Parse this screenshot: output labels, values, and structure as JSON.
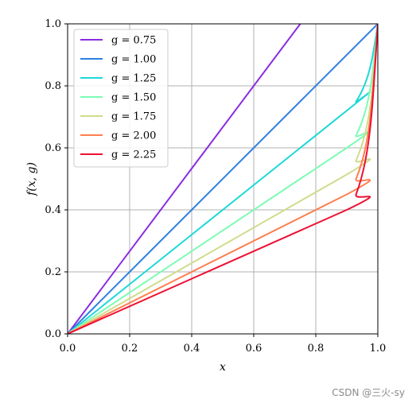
{
  "chart_data": {
    "type": "line",
    "title": "",
    "xlabel": "x",
    "ylabel": "f(x, g)",
    "xlim": [
      0.0,
      1.0
    ],
    "ylim": [
      0.0,
      1.0
    ],
    "xticks": [
      "0.0",
      "0.2",
      "0.4",
      "0.6",
      "0.8",
      "1.0"
    ],
    "yticks": [
      "0.0",
      "0.2",
      "0.4",
      "0.6",
      "0.8",
      "1.0"
    ],
    "grid": true,
    "legend_position": "top-left",
    "series": [
      {
        "name": "g = 0.75",
        "color": "#8b2be2",
        "points": [
          [
            0.0,
            0.0
          ],
          [
            0.75,
            1.0
          ]
        ]
      },
      {
        "name": "g = 1.00",
        "color": "#2c7fe0",
        "points": [
          [
            0.0,
            0.0
          ],
          [
            1.0,
            1.0
          ]
        ]
      },
      {
        "name": "g = 1.25",
        "color": "#1fd8d8",
        "points": [
          [
            0.0,
            0.0
          ],
          [
            0.9,
            0.72
          ],
          [
            0.93,
            0.75
          ],
          [
            0.96,
            0.81
          ],
          [
            0.98,
            0.88
          ],
          [
            1.0,
            1.0
          ]
        ]
      },
      {
        "name": "g = 1.50",
        "color": "#7dfcb4",
        "points": [
          [
            0.0,
            0.0
          ],
          [
            0.9,
            0.6
          ],
          [
            0.93,
            0.64
          ],
          [
            0.96,
            0.72
          ],
          [
            0.98,
            0.82
          ],
          [
            1.0,
            1.0
          ]
        ]
      },
      {
        "name": "g = 1.75",
        "color": "#cfdc8c",
        "points": [
          [
            0.0,
            0.0
          ],
          [
            0.9,
            0.514
          ],
          [
            0.93,
            0.56
          ],
          [
            0.96,
            0.65
          ],
          [
            0.98,
            0.77
          ],
          [
            1.0,
            1.0
          ]
        ]
      },
      {
        "name": "g = 2.00",
        "color": "#ff7f50",
        "points": [
          [
            0.0,
            0.0
          ],
          [
            0.9,
            0.45
          ],
          [
            0.93,
            0.5
          ],
          [
            0.96,
            0.6
          ],
          [
            0.98,
            0.74
          ],
          [
            1.0,
            1.0
          ]
        ]
      },
      {
        "name": "g = 2.25",
        "color": "#ee1133",
        "points": [
          [
            0.0,
            0.0
          ],
          [
            0.9,
            0.4
          ],
          [
            0.93,
            0.45
          ],
          [
            0.96,
            0.56
          ],
          [
            0.98,
            0.71
          ],
          [
            1.0,
            1.0
          ]
        ]
      }
    ]
  },
  "watermark": "CSDN @三火-sy"
}
